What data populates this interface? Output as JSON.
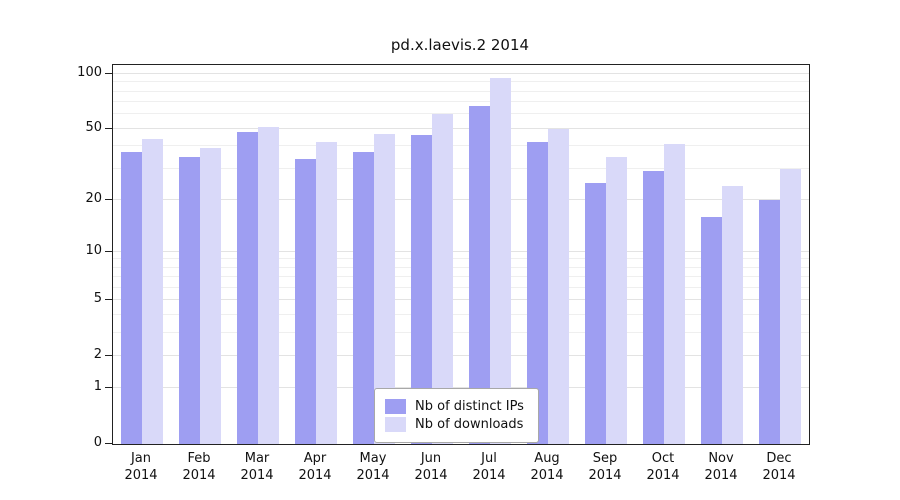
{
  "title": "pd.x.laevis.2 2014",
  "colors": {
    "distinct_ips": "#9e9ef2",
    "downloads": "#d9d9f9",
    "grid_major": "#e3e3e3",
    "grid_minor": "#efefef",
    "axis": "#222222"
  },
  "legend": {
    "items": [
      {
        "label": "Nb of distinct IPs"
      },
      {
        "label": "Nb of downloads"
      }
    ]
  },
  "chart_data": {
    "type": "bar",
    "title": "pd.x.laevis.2 2014",
    "categories": [
      "Jan",
      "Feb",
      "Mar",
      "Apr",
      "May",
      "Jun",
      "Jul",
      "Aug",
      "Sep",
      "Oct",
      "Nov",
      "Dec"
    ],
    "year": "2014",
    "series": [
      {
        "name": "Nb of distinct IPs",
        "color": "#9e9ef2",
        "values": [
          37,
          35,
          48,
          34,
          37,
          46,
          67,
          42,
          25,
          29,
          16,
          20
        ]
      },
      {
        "name": "Nb of downloads",
        "color": "#d9d9f9",
        "values": [
          44,
          39,
          51,
          42,
          47,
          60,
          95,
          50,
          35,
          41,
          24,
          30
        ]
      }
    ],
    "yscale": "log1p",
    "ylim": [
      0,
      101
    ],
    "yticks": [
      0,
      1,
      2,
      5,
      10,
      20,
      50,
      100
    ],
    "grid_lines": [
      1,
      2,
      3,
      4,
      5,
      6,
      7,
      8,
      9,
      10,
      20,
      30,
      40,
      50,
      60,
      70,
      80,
      90,
      100
    ],
    "grid": true,
    "legend_position": "bottom-center",
    "xlabel": "",
    "ylabel": ""
  }
}
